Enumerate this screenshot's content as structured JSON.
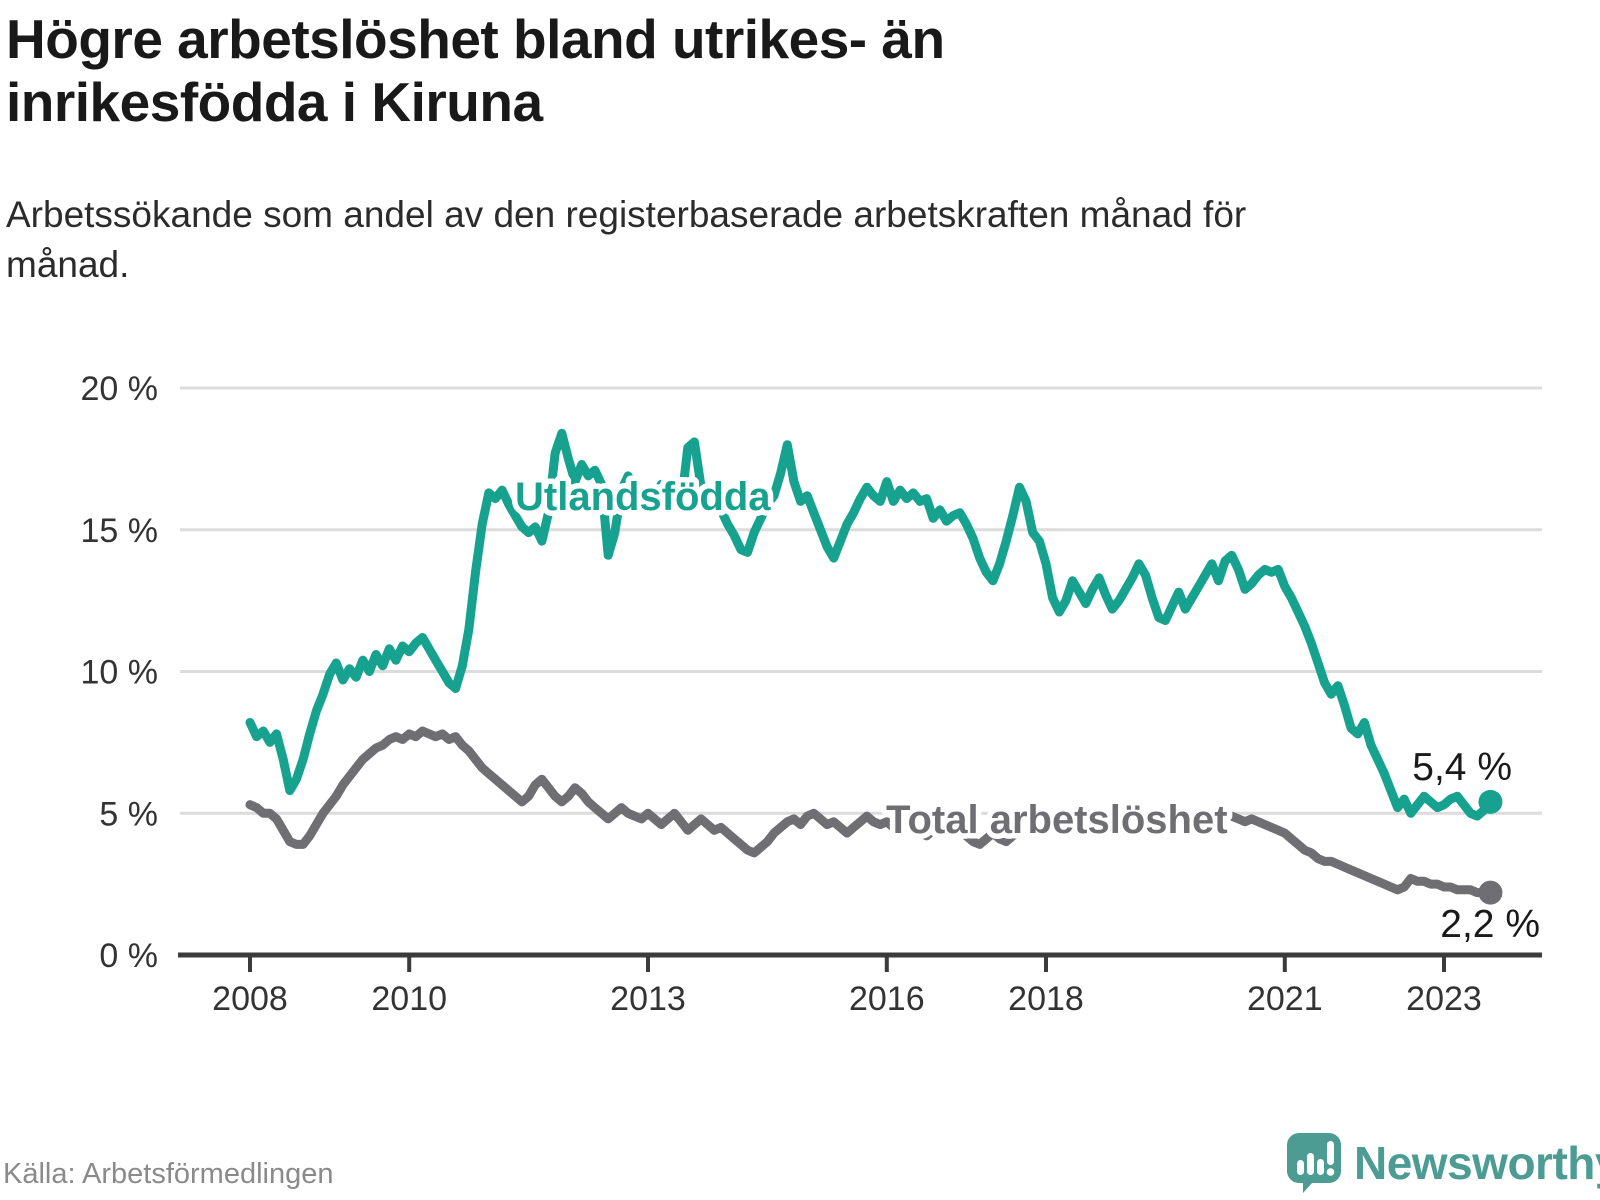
{
  "header": {
    "title": "Högre arbetslöshet bland utrikes- än inrikesfödda i Kiruna",
    "subtitle": "Arbetssökande som andel av den registerbaserade arbetskraften månad för månad."
  },
  "footer": {
    "source": "Källa: Arbetsförmedlingen",
    "logo_text": "Newsworthy"
  },
  "colors": {
    "series_foreign": "#17a290",
    "series_total": "#6f6f73",
    "gridline": "#dcdcdc",
    "axis": "#3b3b3b",
    "tick_label": "#333333",
    "end_label": "#1a1a1a",
    "logo_teal": "#4c9c94"
  },
  "chart_data": {
    "type": "line",
    "title": "Högre arbetslöshet bland utrikes- än inrikesfödda i Kiruna",
    "xlabel": "",
    "ylabel": "Arbetssökande som andel av den registerbaserade arbetskraften",
    "x_unit": "month",
    "x_start": "2008-01",
    "x_end": "2023-08",
    "ylim": [
      0,
      20
    ],
    "grid": "horizontal",
    "y_ticks": [
      {
        "value": 20,
        "label": "20 %"
      },
      {
        "value": 15,
        "label": "15 %"
      },
      {
        "value": 10,
        "label": "10 %"
      },
      {
        "value": 5,
        "label": "5 %"
      },
      {
        "value": 0,
        "label": "0 %"
      }
    ],
    "x_ticks": [
      {
        "year": 2008,
        "label": "2008"
      },
      {
        "year": 2010,
        "label": "2010"
      },
      {
        "year": 2013,
        "label": "2013"
      },
      {
        "year": 2016,
        "label": "2016"
      },
      {
        "year": 2018,
        "label": "2018"
      },
      {
        "year": 2021,
        "label": "2021"
      },
      {
        "year": 2023,
        "label": "2023"
      }
    ],
    "series": [
      {
        "name": "Utlandsfödda",
        "color": "#17a290",
        "end_label": "5,4 %",
        "end_value": 5.4,
        "values": [
          8.2,
          7.7,
          7.9,
          7.5,
          7.8,
          6.9,
          5.8,
          6.2,
          6.9,
          7.8,
          8.6,
          9.2,
          9.9,
          10.3,
          9.7,
          10.1,
          9.8,
          10.4,
          10.0,
          10.6,
          10.2,
          10.8,
          10.4,
          10.9,
          10.7,
          11.0,
          11.2,
          10.8,
          10.4,
          10.0,
          9.6,
          9.4,
          10.2,
          11.5,
          13.5,
          15.2,
          16.3,
          16.1,
          16.4,
          15.9,
          15.5,
          15.1,
          14.9,
          15.1,
          14.6,
          15.6,
          17.7,
          18.4,
          17.5,
          16.7,
          17.3,
          16.9,
          17.1,
          16.6,
          14.1,
          14.9,
          16.4,
          16.9,
          16.3,
          16.0,
          16.4,
          16.1,
          16.6,
          16.2,
          16.4,
          15.9,
          17.9,
          18.1,
          16.5,
          15.9,
          16.3,
          15.7,
          15.2,
          14.8,
          14.3,
          14.2,
          14.9,
          15.4,
          15.9,
          16.2,
          17.0,
          18.0,
          16.7,
          16.0,
          16.2,
          15.6,
          15.0,
          14.4,
          14.0,
          14.6,
          15.2,
          15.6,
          16.1,
          16.5,
          16.2,
          16.0,
          16.7,
          16.0,
          16.4,
          16.1,
          16.3,
          16.0,
          16.1,
          15.4,
          15.7,
          15.3,
          15.5,
          15.6,
          15.2,
          14.7,
          14.0,
          13.5,
          13.2,
          13.8,
          14.6,
          15.5,
          16.5,
          16.0,
          14.9,
          14.6,
          13.8,
          12.6,
          12.1,
          12.5,
          13.2,
          12.8,
          12.4,
          12.9,
          13.3,
          12.7,
          12.2,
          12.5,
          12.9,
          13.3,
          13.8,
          13.4,
          12.6,
          11.9,
          11.8,
          12.3,
          12.8,
          12.2,
          12.6,
          13.0,
          13.4,
          13.8,
          13.2,
          13.9,
          14.1,
          13.6,
          12.9,
          13.1,
          13.4,
          13.6,
          13.5,
          13.6,
          13.0,
          12.6,
          12.1,
          11.6,
          11.0,
          10.3,
          9.6,
          9.2,
          9.5,
          8.8,
          8.0,
          7.8,
          8.2,
          7.4,
          6.9,
          6.4,
          5.8,
          5.2,
          5.5,
          5.0,
          5.3,
          5.6,
          5.4,
          5.2,
          5.3,
          5.5,
          5.6,
          5.3,
          5.0,
          4.9,
          5.1,
          5.4
        ]
      },
      {
        "name": "Total arbetslöshet",
        "color": "#6f6f73",
        "end_label": "2,2 %",
        "end_value": 2.2,
        "values": [
          5.3,
          5.2,
          5.0,
          5.0,
          4.8,
          4.4,
          4.0,
          3.9,
          3.9,
          4.2,
          4.6,
          5.0,
          5.3,
          5.6,
          6.0,
          6.3,
          6.6,
          6.9,
          7.1,
          7.3,
          7.4,
          7.6,
          7.7,
          7.6,
          7.8,
          7.7,
          7.9,
          7.8,
          7.7,
          7.8,
          7.6,
          7.7,
          7.4,
          7.2,
          6.9,
          6.6,
          6.4,
          6.2,
          6.0,
          5.8,
          5.6,
          5.4,
          5.6,
          6.0,
          6.2,
          5.9,
          5.6,
          5.4,
          5.6,
          5.9,
          5.7,
          5.4,
          5.2,
          5.0,
          4.8,
          5.0,
          5.2,
          5.0,
          4.9,
          4.8,
          5.0,
          4.8,
          4.6,
          4.8,
          5.0,
          4.7,
          4.4,
          4.6,
          4.8,
          4.6,
          4.4,
          4.5,
          4.3,
          4.1,
          3.9,
          3.7,
          3.6,
          3.8,
          4.0,
          4.3,
          4.5,
          4.7,
          4.8,
          4.6,
          4.9,
          5.0,
          4.8,
          4.6,
          4.7,
          4.5,
          4.3,
          4.5,
          4.7,
          4.9,
          4.7,
          4.6,
          4.7,
          4.5,
          4.6,
          4.8,
          4.6,
          4.4,
          4.2,
          4.4,
          4.6,
          4.4,
          4.3,
          4.4,
          4.2,
          4.0,
          3.9,
          4.1,
          4.3,
          4.1,
          4.0,
          4.2,
          4.4,
          4.6,
          4.4,
          4.3,
          4.5,
          4.6,
          4.4,
          4.5,
          4.7,
          4.5,
          4.4,
          4.6,
          4.7,
          4.6,
          4.5,
          4.6,
          4.7,
          4.8,
          4.7,
          4.6,
          4.7,
          4.6,
          4.5,
          4.6,
          4.7,
          4.8,
          4.7,
          4.8,
          4.9,
          5.0,
          5.1,
          5.0,
          4.9,
          4.8,
          4.7,
          4.8,
          4.7,
          4.6,
          4.5,
          4.4,
          4.3,
          4.1,
          3.9,
          3.7,
          3.6,
          3.4,
          3.3,
          3.3,
          3.2,
          3.1,
          3.0,
          2.9,
          2.8,
          2.7,
          2.6,
          2.5,
          2.4,
          2.3,
          2.4,
          2.7,
          2.6,
          2.6,
          2.5,
          2.5,
          2.4,
          2.4,
          2.3,
          2.3,
          2.3,
          2.2,
          2.2,
          2.2
        ]
      }
    ],
    "legend_position": "inline-labels"
  }
}
